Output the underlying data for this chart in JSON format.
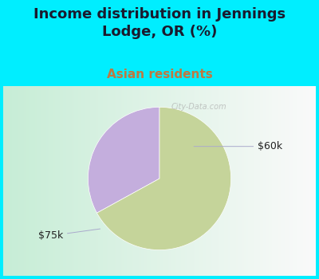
{
  "title": "Income distribution in Jennings\nLodge, OR (%)",
  "subtitle": "Asian residents",
  "title_color": "#1a1a2e",
  "subtitle_color": "#c07840",
  "background_color": "#00eeff",
  "slices": [
    {
      "label": "$60k",
      "value": 33,
      "color": "#c4aedd"
    },
    {
      "label": "$75k",
      "value": 67,
      "color": "#c5d49a"
    }
  ],
  "label_fontsize": 9,
  "title_fontsize": 13,
  "subtitle_fontsize": 11,
  "startangle": 90,
  "watermark": "City-Data.com",
  "line_color": "#aaaacc",
  "label_color": "#222222",
  "chart_bg_left": "#c8e8d0",
  "chart_bg_right": "#f0f8f4"
}
